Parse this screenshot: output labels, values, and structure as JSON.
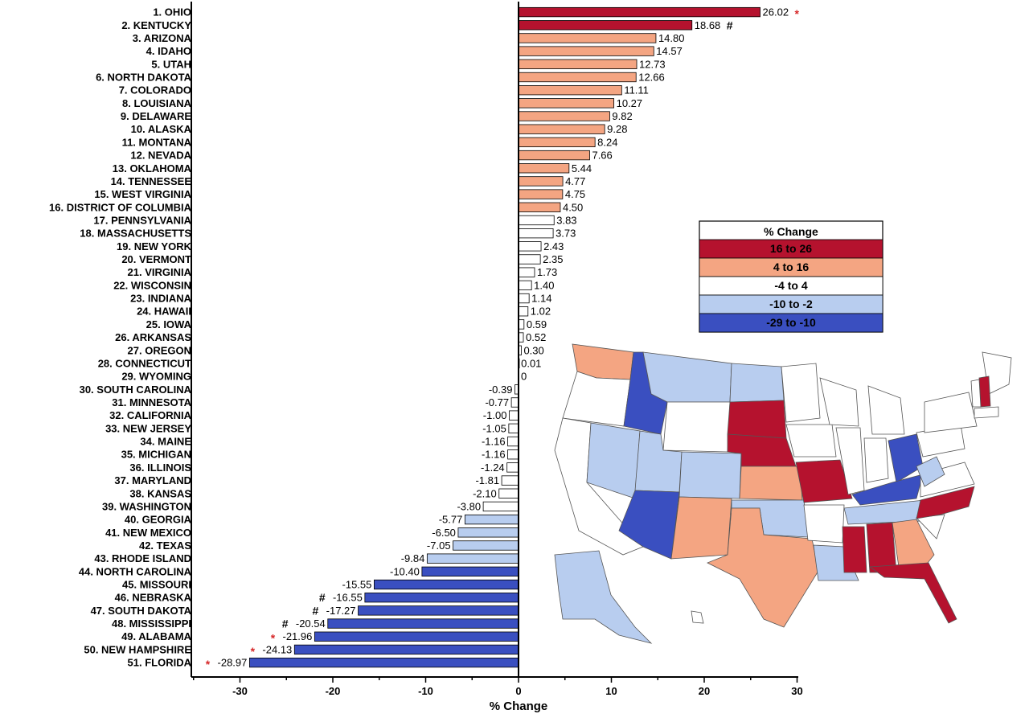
{
  "chart_data": {
    "type": "bar",
    "orientation": "horizontal",
    "xlabel": "% Change",
    "xlim": [
      -35,
      30
    ],
    "xticks": [
      -30,
      -20,
      -10,
      0,
      10,
      20,
      30
    ],
    "categories": [
      "1. OHIO",
      "2. KENTUCKY",
      "3. ARIZONA",
      "4. IDAHO",
      "5. UTAH",
      "6. NORTH DAKOTA",
      "7. COLORADO",
      "8. LOUISIANA",
      "9. DELAWARE",
      "10. ALASKA",
      "11. MONTANA",
      "12. NEVADA",
      "13. OKLAHOMA",
      "14. TENNESSEE",
      "15. WEST VIRGINIA",
      "16. DISTRICT OF COLUMBIA",
      "17. PENNSYLVANIA",
      "18. MASSACHUSETTS",
      "19. NEW YORK",
      "20. VERMONT",
      "21. VIRGINIA",
      "22. WISCONSIN",
      "23. INDIANA",
      "24. HAWAII",
      "25. IOWA",
      "26. ARKANSAS",
      "27. OREGON",
      "28. CONNECTICUT",
      "29. WYOMING",
      "30. SOUTH CAROLINA",
      "31. MINNESOTA",
      "32. CALIFORNIA",
      "33. NEW JERSEY",
      "34. MAINE",
      "35. MICHIGAN",
      "36. ILLINOIS",
      "37. MARYLAND",
      "38. KANSAS",
      "39. WASHINGTON",
      "40. GEORGIA",
      "41. NEW MEXICO",
      "42. TEXAS",
      "43. RHODE ISLAND",
      "44. NORTH CAROLINA",
      "45. MISSOURI",
      "46. NEBRASKA",
      "47. SOUTH DAKOTA",
      "48. MISSISSIPPI",
      "49. ALABAMA",
      "50. NEW HAMPSHIRE",
      "51. FLORIDA"
    ],
    "values": [
      26.02,
      18.68,
      14.8,
      14.57,
      12.73,
      12.66,
      11.11,
      10.27,
      9.82,
      9.28,
      8.24,
      7.66,
      5.44,
      4.77,
      4.75,
      4.5,
      3.83,
      3.73,
      2.43,
      2.35,
      1.73,
      1.4,
      1.14,
      1.02,
      0.59,
      0.52,
      0.3,
      0.01,
      0,
      -0.39,
      -0.77,
      -1.0,
      -1.05,
      -1.16,
      -1.16,
      -1.24,
      -1.81,
      -2.1,
      -3.8,
      -5.77,
      -6.5,
      -7.05,
      -9.84,
      -10.4,
      -15.55,
      -16.55,
      -17.27,
      -20.54,
      -21.96,
      -24.13,
      -28.97
    ],
    "value_labels": [
      "26.02",
      "18.68",
      "14.80",
      "14.57",
      "12.73",
      "12.66",
      "11.11",
      "10.27",
      "9.82",
      "9.28",
      "8.24",
      "7.66",
      "5.44",
      "4.77",
      "4.75",
      "4.50",
      "3.83",
      "3.73",
      "2.43",
      "2.35",
      "1.73",
      "1.40",
      "1.14",
      "1.02",
      "0.59",
      "0.52",
      "0.30",
      "0.01",
      "0",
      "-0.39",
      "-0.77",
      "-1.00",
      "-1.05",
      "-1.16",
      "-1.16",
      "-1.24",
      "-1.81",
      "-2.10",
      "-3.80",
      "-5.77",
      "-6.50",
      "-7.05",
      "-9.84",
      "-10.40",
      "-15.55",
      "-16.55",
      "-17.27",
      "-20.54",
      "-21.96",
      "-24.13",
      "-28.97"
    ],
    "markers": {
      "0": "*",
      "1": "#",
      "45": "#",
      "46": "#",
      "47": "#",
      "48": "*",
      "49": "*",
      "50": "*"
    },
    "marker_colors": {
      "*": "#d62728",
      "#": "#000000"
    },
    "color_bins": [
      {
        "label": "16 to 26",
        "min": 16,
        "max": 27,
        "color": "#b5122e"
      },
      {
        "label": "4 to 16",
        "min": 4.3,
        "max": 16,
        "color": "#f4a582"
      },
      {
        "label": "-4 to 4",
        "min": -4,
        "max": 4.3,
        "color": "#ffffff"
      },
      {
        "label": "-10 to -2",
        "min": -10,
        "max": -2,
        "color": "#b8cdef"
      },
      {
        "label": "-29 to -10",
        "min": -30,
        "max": -10,
        "color": "#3a4fc0"
      }
    ],
    "legend": {
      "title": "% Change",
      "placement": "right"
    }
  }
}
